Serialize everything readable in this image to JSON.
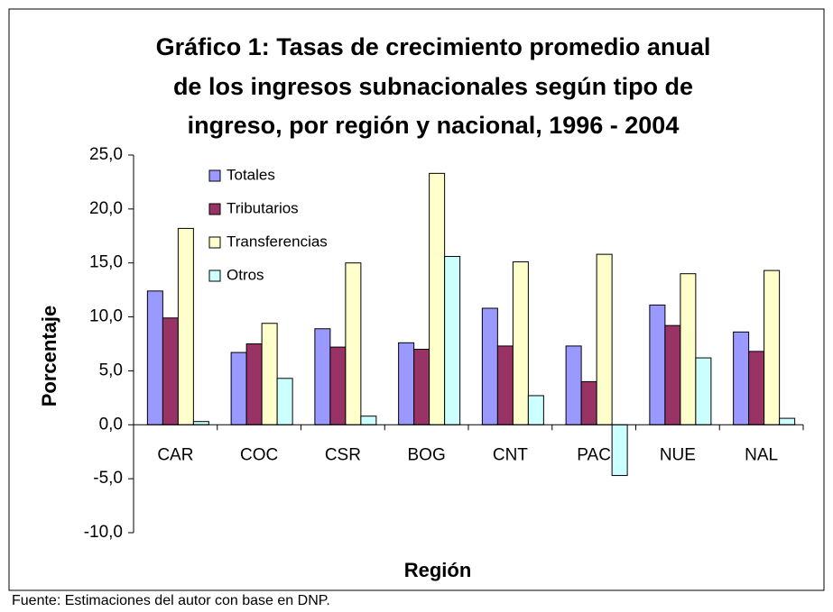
{
  "chart_data": {
    "type": "bar",
    "title": [
      "Gráfico 1: Tasas de crecimiento promedio anual",
      "de los ingresos subnacionales según tipo de",
      "ingreso, por región y nacional, 1996 - 2004"
    ],
    "x_label": "Región",
    "y_label": "Porcentaje",
    "source": "Fuente: Estimaciones del autor con base en DNP.",
    "categories": [
      "CAR",
      "COC",
      "CSR",
      "BOG",
      "CNT",
      "PAC",
      "NUE",
      "NAL"
    ],
    "series": [
      {
        "name": "Totales",
        "color": "#9999ff",
        "values": [
          12.4,
          6.7,
          8.9,
          7.6,
          10.8,
          7.3,
          11.1,
          8.6
        ]
      },
      {
        "name": "Tributarios",
        "color": "#993366",
        "values": [
          9.9,
          7.5,
          7.2,
          7.0,
          7.3,
          4.0,
          9.2,
          6.8
        ]
      },
      {
        "name": "Transferencias",
        "color": "#ffffcc",
        "values": [
          18.2,
          9.4,
          15.0,
          23.3,
          15.1,
          15.8,
          14.0,
          14.3
        ]
      },
      {
        "name": "Otros",
        "color": "#ccffff",
        "values": [
          0.3,
          4.3,
          0.8,
          15.6,
          2.7,
          -4.7,
          6.2,
          0.6
        ]
      }
    ],
    "ylim": [
      -10,
      25
    ],
    "yticks": [
      {
        "value": -10,
        "label": "-10,0"
      },
      {
        "value": -5,
        "label": "-5,0"
      },
      {
        "value": 0,
        "label": "0,0"
      },
      {
        "value": 5,
        "label": "5,0"
      },
      {
        "value": 10,
        "label": "10,0"
      },
      {
        "value": 15,
        "label": "15,0"
      },
      {
        "value": 20,
        "label": "20,0"
      },
      {
        "value": 25,
        "label": "25,0"
      }
    ],
    "legend": "upper left",
    "grid": false
  }
}
